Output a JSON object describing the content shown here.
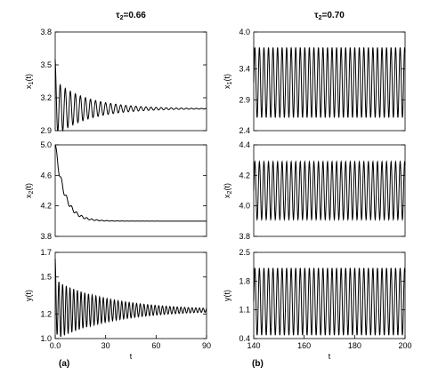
{
  "chart_data": [
    {
      "type": "line",
      "panel": "a",
      "title_main": "τ",
      "title_sub": "2",
      "title_rest": "=0.66",
      "ylabel": "x1(t)",
      "xlabel": "",
      "xlim": [
        0,
        90
      ],
      "ylim": [
        2.9,
        3.8
      ],
      "yticks": [
        "3.8",
        "3.5",
        "3.2",
        "2.9"
      ],
      "ytick_values": [
        3.8,
        3.5,
        3.2,
        2.9
      ],
      "xticks": [],
      "xtick_values": [],
      "signal": {
        "kind": "damped",
        "equilibrium": 3.1,
        "start": 3.55,
        "peak": 3.55,
        "amplitude": 0.25,
        "decay": 0.05,
        "period": 3.0,
        "phase_shift": 0
      }
    },
    {
      "type": "line",
      "panel": "a",
      "ylabel": "x2(t)",
      "xlabel": "",
      "xlim": [
        0,
        90
      ],
      "ylim": [
        3.8,
        5.0
      ],
      "yticks": [
        "5.0",
        "4.6",
        "4.2",
        "3.8"
      ],
      "ytick_values": [
        5.0,
        4.6,
        4.2,
        3.8
      ],
      "xticks": [],
      "xtick_values": [],
      "signal": {
        "kind": "relax",
        "equilibrium": 4.0,
        "start": 5.0,
        "decay": 0.18,
        "ripple": 0.06,
        "ripple_decay": 0.09,
        "period": 3.0
      }
    },
    {
      "type": "line",
      "panel": "a",
      "ylabel": "y(t)",
      "xlabel": "t",
      "xlim": [
        0,
        90
      ],
      "ylim": [
        1.0,
        1.7
      ],
      "yticks": [
        "1.7",
        "1.5",
        "1.2",
        "1.0"
      ],
      "ytick_values": [
        1.7,
        1.5,
        1.2,
        1.0
      ],
      "xticks": [
        "0.0",
        "30",
        "60",
        "90"
      ],
      "xtick_values": [
        0,
        30,
        60,
        90
      ],
      "signal": {
        "kind": "damped",
        "equilibrium": 1.23,
        "start": 1.65,
        "amplitude": 0.24,
        "decay": 0.03,
        "period": 2.2,
        "phase_shift": 0
      }
    },
    {
      "type": "line",
      "panel": "b",
      "title_main": "τ",
      "title_sub": "2",
      "title_rest": "=0.70",
      "ylabel": "x1(t)",
      "xlabel": "",
      "xlim": [
        140,
        200
      ],
      "ylim": [
        2.4,
        4.0
      ],
      "yticks": [
        "4.0",
        "3.4",
        "2.9",
        "2.4"
      ],
      "ytick_values": [
        4.0,
        3.4,
        2.9,
        2.4
      ],
      "xticks": [],
      "xtick_values": [],
      "signal": {
        "kind": "periodic",
        "center": 3.18,
        "amplitude": 0.57,
        "period": 1.8
      }
    },
    {
      "type": "line",
      "panel": "b",
      "ylabel": "x2(t)",
      "xlabel": "",
      "xlim": [
        140,
        200
      ],
      "ylim": [
        3.8,
        4.4
      ],
      "yticks": [
        "4.4",
        "4.2",
        "4.0",
        "3.8"
      ],
      "ytick_values": [
        4.4,
        4.2,
        4.0,
        3.8
      ],
      "xticks": [],
      "xtick_values": [],
      "signal": {
        "kind": "periodic",
        "center": 4.1,
        "amplitude": 0.19,
        "period": 1.8
      }
    },
    {
      "type": "line",
      "panel": "b",
      "ylabel": "y(t)",
      "xlabel": "t",
      "xlim": [
        140,
        200
      ],
      "ylim": [
        0.4,
        2.5
      ],
      "yticks": [
        "2.5",
        "1.8",
        "1.1",
        "0.4"
      ],
      "ytick_values": [
        2.5,
        1.8,
        1.1,
        0.4
      ],
      "xticks": [
        "140",
        "160",
        "180",
        "200"
      ],
      "xtick_values": [
        140,
        160,
        180,
        200
      ],
      "signal": {
        "kind": "periodic",
        "center": 1.3,
        "amplitude": 0.82,
        "period": 1.8
      }
    }
  ],
  "panel_labels": {
    "a": "(a)",
    "b": "(b)"
  }
}
